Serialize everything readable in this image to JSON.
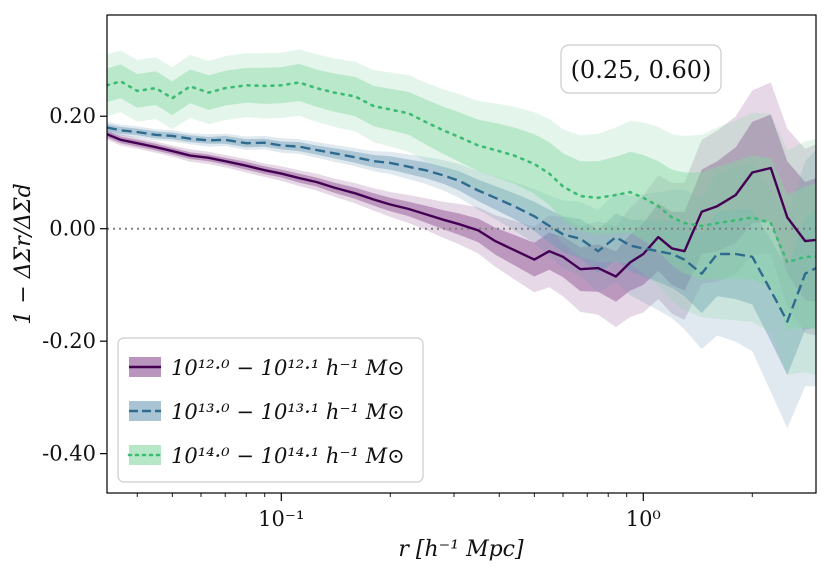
{
  "chart_data": {
    "type": "line",
    "title": "",
    "xlabel": "r [h⁻¹ Mpc]",
    "ylabel": "1 − ΔΣr/ΔΣd",
    "xscale": "log",
    "xlim": [
      0.033,
      3.0
    ],
    "ylim": [
      -0.47,
      0.38
    ],
    "x_ticks": [
      {
        "value": 0.1,
        "label": "10⁻¹"
      },
      {
        "value": 1.0,
        "label": "10⁰"
      }
    ],
    "y_ticks": [
      {
        "value": 0.2,
        "label": "0.20"
      },
      {
        "value": 0.0,
        "label": "0.00"
      },
      {
        "value": -0.2,
        "label": "-0.20"
      },
      {
        "value": -0.4,
        "label": "-0.40"
      }
    ],
    "reference_line": {
      "y": 0.0,
      "style": "dotted",
      "color": "#808080"
    },
    "annotation": "(0.25, 0.60)",
    "legend_position": "lower-left",
    "series": [
      {
        "name": "10^12.0 − 10^12.1 h⁻¹ M⊙",
        "legend_label": "10¹²·⁰ − 10¹²·¹ h⁻¹ M⊙",
        "color": "#440154",
        "band_color": "#8b4c8f",
        "line_style": "solid",
        "x": [
          0.033,
          0.036,
          0.04,
          0.045,
          0.05,
          0.056,
          0.063,
          0.07,
          0.08,
          0.09,
          0.1,
          0.112,
          0.125,
          0.14,
          0.16,
          0.18,
          0.2,
          0.225,
          0.25,
          0.28,
          0.31,
          0.35,
          0.39,
          0.44,
          0.5,
          0.55,
          0.6,
          0.67,
          0.75,
          0.84,
          0.92,
          1.0,
          1.1,
          1.2,
          1.3,
          1.45,
          1.6,
          1.8,
          2.0,
          2.25,
          2.5,
          2.8,
          3.0
        ],
        "y": [
          0.168,
          0.158,
          0.152,
          0.145,
          0.138,
          0.13,
          0.126,
          0.12,
          0.112,
          0.104,
          0.098,
          0.09,
          0.083,
          0.073,
          0.063,
          0.052,
          0.043,
          0.035,
          0.026,
          0.016,
          0.008,
          -0.003,
          -0.022,
          -0.038,
          -0.055,
          -0.04,
          -0.05,
          -0.072,
          -0.07,
          -0.085,
          -0.06,
          -0.045,
          -0.015,
          -0.035,
          -0.04,
          0.03,
          0.04,
          0.06,
          0.1,
          0.108,
          0.02,
          -0.022,
          -0.02
        ],
        "band_inner_half": [
          0.006,
          0.006,
          0.006,
          0.006,
          0.006,
          0.006,
          0.006,
          0.006,
          0.007,
          0.007,
          0.007,
          0.008,
          0.008,
          0.009,
          0.01,
          0.011,
          0.012,
          0.013,
          0.015,
          0.017,
          0.019,
          0.021,
          0.024,
          0.027,
          0.03,
          0.033,
          0.036,
          0.039,
          0.042,
          0.045,
          0.05,
          0.055,
          0.06,
          0.065,
          0.07,
          0.075,
          0.08,
          0.085,
          0.09,
          0.095,
          0.1,
          0.105,
          0.11
        ],
        "band_outer_half": [
          0.01,
          0.01,
          0.01,
          0.01,
          0.01,
          0.011,
          0.011,
          0.011,
          0.012,
          0.012,
          0.013,
          0.014,
          0.015,
          0.016,
          0.018,
          0.02,
          0.022,
          0.025,
          0.028,
          0.032,
          0.036,
          0.041,
          0.046,
          0.052,
          0.058,
          0.064,
          0.07,
          0.076,
          0.083,
          0.09,
          0.097,
          0.104,
          0.11,
          0.116,
          0.122,
          0.128,
          0.134,
          0.14,
          0.146,
          0.152,
          0.158,
          0.164,
          0.17
        ]
      },
      {
        "name": "10^13.0 − 10^13.1 h⁻¹ M⊙",
        "legend_label": "10¹³·⁰ − 10¹³·¹ h⁻¹ M⊙",
        "color": "#2e6b8e",
        "band_color": "#6f9cb8",
        "line_style": "dashed",
        "x": [
          0.033,
          0.036,
          0.04,
          0.045,
          0.05,
          0.056,
          0.063,
          0.07,
          0.08,
          0.09,
          0.1,
          0.112,
          0.125,
          0.14,
          0.16,
          0.18,
          0.2,
          0.225,
          0.25,
          0.28,
          0.31,
          0.35,
          0.39,
          0.44,
          0.5,
          0.55,
          0.6,
          0.67,
          0.75,
          0.84,
          0.92,
          1.0,
          1.1,
          1.2,
          1.3,
          1.45,
          1.6,
          1.8,
          2.0,
          2.25,
          2.5,
          2.8,
          3.0
        ],
        "y": [
          0.18,
          0.175,
          0.172,
          0.167,
          0.165,
          0.16,
          0.157,
          0.158,
          0.152,
          0.153,
          0.148,
          0.146,
          0.14,
          0.134,
          0.127,
          0.12,
          0.117,
          0.11,
          0.104,
          0.095,
          0.085,
          0.068,
          0.055,
          0.04,
          0.022,
          0.005,
          -0.01,
          -0.018,
          -0.04,
          -0.015,
          -0.03,
          -0.035,
          -0.04,
          -0.045,
          -0.055,
          -0.08,
          -0.045,
          -0.045,
          -0.05,
          -0.11,
          -0.165,
          -0.08,
          -0.07
        ],
        "band_inner_half": [
          0.006,
          0.006,
          0.006,
          0.006,
          0.006,
          0.006,
          0.006,
          0.007,
          0.007,
          0.007,
          0.007,
          0.008,
          0.008,
          0.009,
          0.01,
          0.011,
          0.012,
          0.013,
          0.014,
          0.015,
          0.017,
          0.019,
          0.021,
          0.023,
          0.026,
          0.029,
          0.032,
          0.035,
          0.038,
          0.042,
          0.046,
          0.05,
          0.055,
          0.06,
          0.065,
          0.07,
          0.075,
          0.08,
          0.085,
          0.09,
          0.095,
          0.1,
          0.105
        ],
        "band_outer_half": [
          0.01,
          0.01,
          0.01,
          0.01,
          0.01,
          0.01,
          0.011,
          0.011,
          0.012,
          0.012,
          0.013,
          0.013,
          0.014,
          0.015,
          0.016,
          0.018,
          0.02,
          0.022,
          0.024,
          0.027,
          0.03,
          0.034,
          0.038,
          0.043,
          0.048,
          0.054,
          0.06,
          0.066,
          0.073,
          0.08,
          0.088,
          0.096,
          0.105,
          0.114,
          0.124,
          0.134,
          0.145,
          0.156,
          0.168,
          0.18,
          0.19,
          0.2,
          0.21
        ]
      },
      {
        "name": "10^14.0 − 10^14.1 h⁻¹ M⊙",
        "legend_label": "10¹⁴·⁰ − 10¹⁴·¹ h⁻¹ M⊙",
        "color": "#3cbb75",
        "band_color": "#86d8a2",
        "line_style": "dotted",
        "x": [
          0.033,
          0.036,
          0.04,
          0.045,
          0.05,
          0.056,
          0.063,
          0.07,
          0.08,
          0.09,
          0.1,
          0.112,
          0.125,
          0.14,
          0.16,
          0.18,
          0.2,
          0.225,
          0.25,
          0.28,
          0.31,
          0.35,
          0.39,
          0.44,
          0.5,
          0.55,
          0.6,
          0.67,
          0.75,
          0.84,
          0.92,
          1.0,
          1.1,
          1.2,
          1.3,
          1.45,
          1.6,
          1.8,
          2.0,
          2.25,
          2.5,
          2.8,
          3.0
        ],
        "y": [
          0.255,
          0.262,
          0.245,
          0.25,
          0.232,
          0.253,
          0.242,
          0.25,
          0.255,
          0.254,
          0.255,
          0.26,
          0.25,
          0.242,
          0.235,
          0.218,
          0.212,
          0.205,
          0.19,
          0.175,
          0.163,
          0.148,
          0.14,
          0.13,
          0.115,
          0.098,
          0.075,
          0.058,
          0.055,
          0.06,
          0.065,
          0.055,
          0.04,
          0.02,
          0.01,
          0.005,
          0.01,
          0.015,
          0.02,
          0.01,
          -0.06,
          -0.05,
          -0.05
        ],
        "band_inner_half": [
          0.03,
          0.03,
          0.03,
          0.03,
          0.03,
          0.03,
          0.031,
          0.031,
          0.031,
          0.032,
          0.032,
          0.033,
          0.033,
          0.034,
          0.035,
          0.036,
          0.037,
          0.038,
          0.04,
          0.042,
          0.044,
          0.046,
          0.048,
          0.05,
          0.053,
          0.056,
          0.059,
          0.062,
          0.065,
          0.068,
          0.072,
          0.076,
          0.08,
          0.085,
          0.09,
          0.095,
          0.1,
          0.105,
          0.11,
          0.115,
          0.12,
          0.125,
          0.13
        ],
        "band_outer_half": [
          0.055,
          0.055,
          0.055,
          0.055,
          0.055,
          0.056,
          0.056,
          0.057,
          0.057,
          0.058,
          0.058,
          0.059,
          0.06,
          0.061,
          0.062,
          0.064,
          0.066,
          0.068,
          0.07,
          0.073,
          0.076,
          0.079,
          0.083,
          0.087,
          0.092,
          0.097,
          0.102,
          0.108,
          0.114,
          0.12,
          0.127,
          0.134,
          0.141,
          0.148,
          0.155,
          0.162,
          0.17,
          0.178,
          0.186,
          0.194,
          0.2,
          0.205,
          0.21
        ]
      }
    ]
  }
}
